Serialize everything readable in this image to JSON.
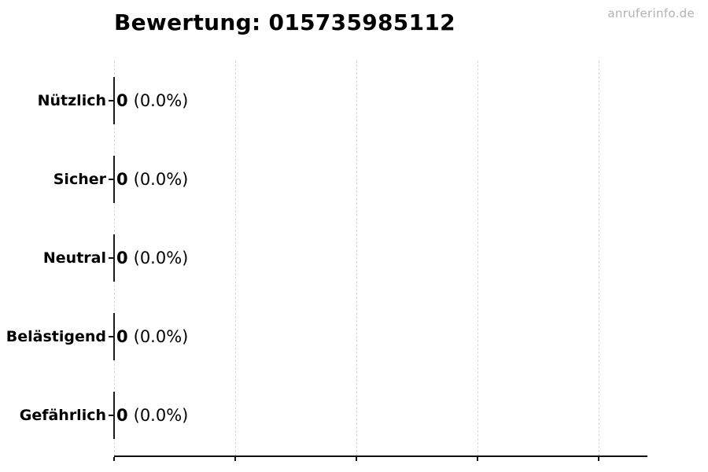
{
  "header": {
    "title": "Bewertung: 015735985112",
    "watermark": "anruferinfo.de"
  },
  "chart_data": {
    "type": "bar",
    "orientation": "horizontal",
    "title": "Bewertung: 015735985112",
    "categories": [
      "Nützlich",
      "Sicher",
      "Neutral",
      "Belästigend",
      "Gefährlich"
    ],
    "values": [
      0,
      0,
      0,
      0,
      0
    ],
    "percentages": [
      0.0,
      0.0,
      0.0,
      0.0,
      0.0
    ],
    "bar_labels": [
      "0 (0.0%)",
      "0 (0.0%)",
      "0 (0.0%)",
      "0 (0.0%)",
      "0 (0.0%)"
    ],
    "xlabel": "",
    "ylabel": "",
    "x_tick_labels_visible": false,
    "grid": "vertical-dashed",
    "gridline_count": 5,
    "legend": false,
    "rows": [
      {
        "category": "Nützlich",
        "count": "0",
        "pct": "(0.0%)"
      },
      {
        "category": "Sicher",
        "count": "0",
        "pct": "(0.0%)"
      },
      {
        "category": "Neutral",
        "count": "0",
        "pct": "(0.0%)"
      },
      {
        "category": "Belästigend",
        "count": "0",
        "pct": "(0.0%)"
      },
      {
        "category": "Gefährlich",
        "count": "0",
        "pct": "(0.0%)"
      }
    ]
  },
  "colors": {
    "background": "#ffffff",
    "text": "#000000",
    "watermark": "#b3b3b3",
    "gridline": "#d9d9d9",
    "axis": "#111111"
  }
}
